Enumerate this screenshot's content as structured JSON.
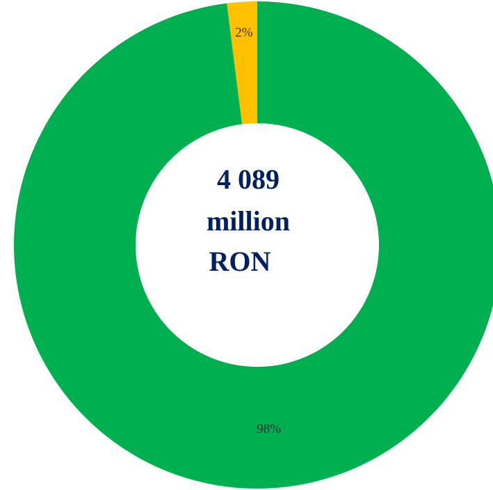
{
  "chart_data": {
    "type": "donut",
    "values": [
      2,
      98
    ],
    "value_labels": [
      "2%",
      "98%"
    ],
    "colors": [
      "#ffc000",
      "#00b050"
    ],
    "center_text": [
      "4 089",
      "million",
      "RON"
    ]
  }
}
